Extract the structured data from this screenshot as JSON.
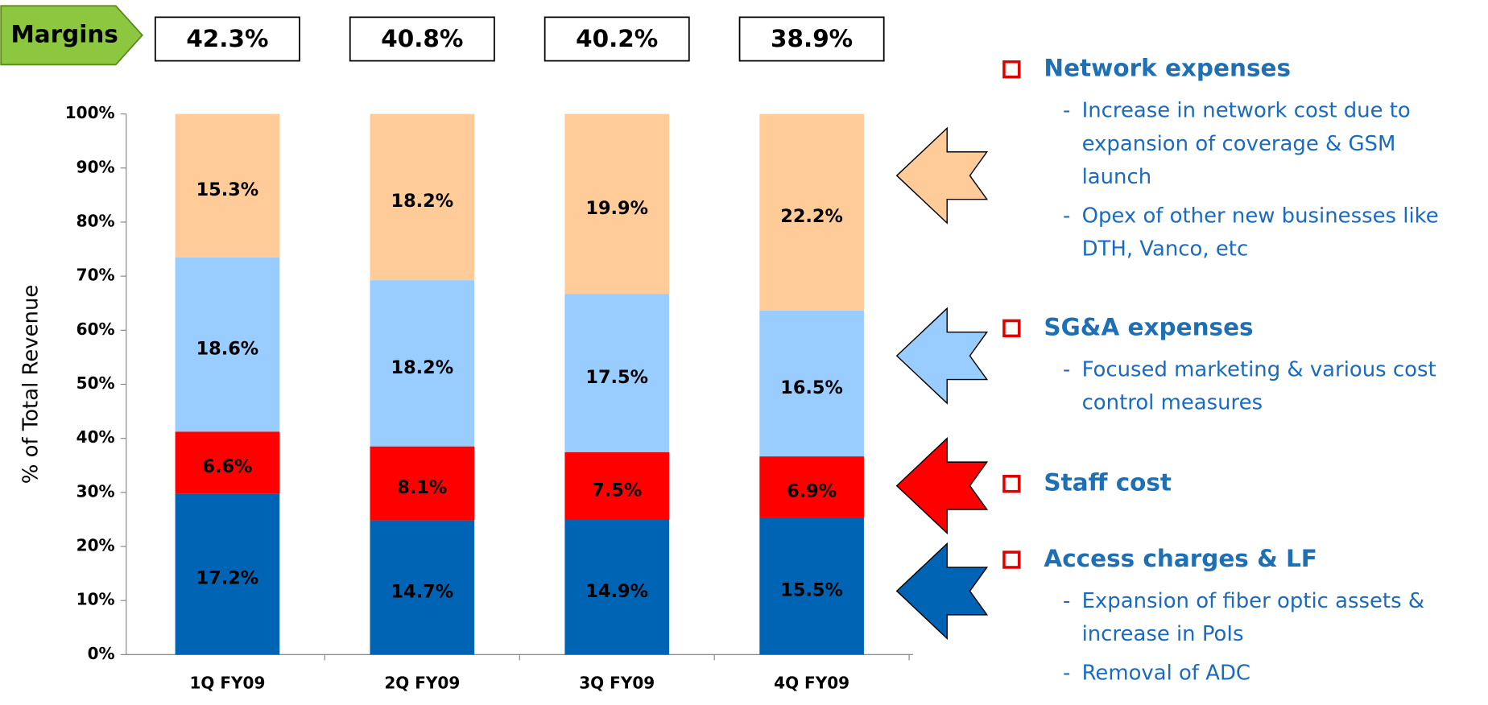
{
  "chart_data": {
    "type": "bar",
    "percent_stacked": true,
    "y_label": "% of Total Revenue",
    "categories": [
      "1Q FY09",
      "2Q FY09",
      "3Q FY09",
      "4Q FY09"
    ],
    "series": [
      {
        "name": "Access charges & LF",
        "color": "#0064b4",
        "values": [
          17.2,
          14.7,
          14.9,
          15.5
        ],
        "value_labels": [
          "17.2%",
          "14.7%",
          "14.9%",
          "15.5%"
        ]
      },
      {
        "name": "Staff cost",
        "color": "#ff0000",
        "values": [
          6.6,
          8.1,
          7.5,
          6.9
        ],
        "value_labels": [
          "6.6%",
          "8.1%",
          "7.5%",
          "6.9%"
        ]
      },
      {
        "name": "SG&A expenses",
        "color": "#99ccff",
        "values": [
          18.6,
          18.2,
          17.5,
          16.5
        ],
        "value_labels": [
          "18.6%",
          "18.2%",
          "17.5%",
          "16.5%"
        ]
      },
      {
        "name": "Network expenses",
        "color": "#ffcc99",
        "values": [
          15.3,
          18.2,
          19.9,
          22.2
        ],
        "value_labels": [
          "15.3%",
          "18.2%",
          "19.9%",
          "22.2%"
        ]
      }
    ],
    "ylim": [
      0,
      100
    ],
    "yticks": [
      {
        "value": 0,
        "label": "0%"
      },
      {
        "value": 10,
        "label": "10%"
      },
      {
        "value": 20,
        "label": "20%"
      },
      {
        "value": 30,
        "label": "30%"
      },
      {
        "value": 40,
        "label": "40%"
      },
      {
        "value": 50,
        "label": "50%"
      },
      {
        "value": 60,
        "label": "60%"
      },
      {
        "value": 70,
        "label": "70%"
      },
      {
        "value": 80,
        "label": "80%"
      },
      {
        "value": 90,
        "label": "90%"
      },
      {
        "value": 100,
        "label": "100%"
      }
    ],
    "margins": {
      "label": "Margins",
      "color": "#8dc63f",
      "values": [
        42.3,
        40.8,
        40.2,
        38.9
      ],
      "value_labels": [
        "42.3%",
        "40.8%",
        "40.2%",
        "38.9%"
      ]
    },
    "notes": [
      {
        "series": 3,
        "items": [
          [
            "Increase in network cost due to",
            "expansion of coverage & GSM",
            "launch"
          ],
          [
            "Opex of other new businesses like",
            "DTH, Vanco, etc"
          ]
        ]
      },
      {
        "series": 2,
        "items": [
          [
            "Focused marketing & various cost",
            "control measures"
          ]
        ]
      },
      {
        "series": 1,
        "items": []
      },
      {
        "series": 0,
        "items": [
          [
            "Expansion of fiber optic assets &",
            "increase in PoIs"
          ],
          [
            "Removal of ADC"
          ]
        ]
      }
    ]
  }
}
